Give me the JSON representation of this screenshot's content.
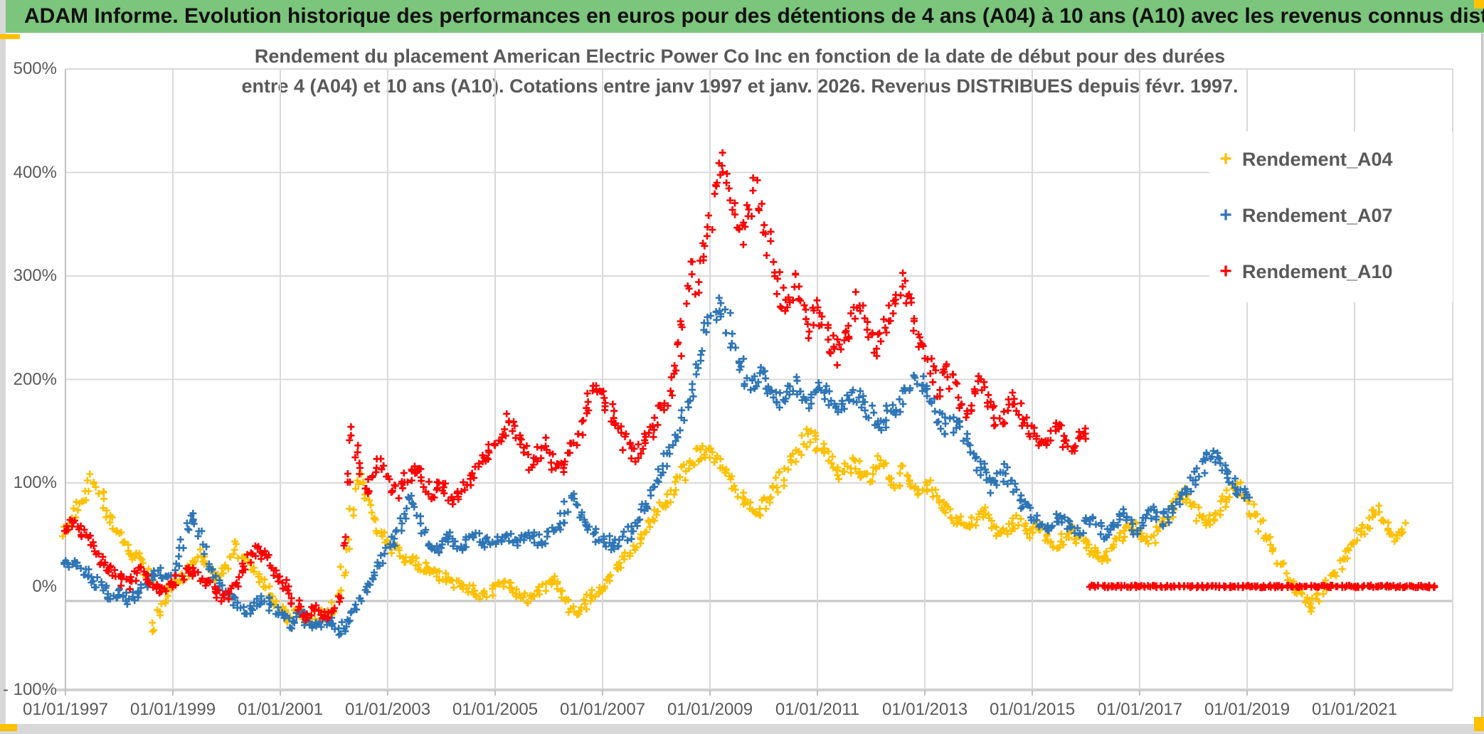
{
  "header": {
    "title": "ADAM Informe. Evolution historique des performances en euros pour des détentions de 4 ans (A04) à 10 ans (A10) avec les revenus connus distribués",
    "background_color": "#7cc57c"
  },
  "accents": {
    "color": "#ffc000"
  },
  "chart": {
    "title_line1": "Rendement du placement American Electric Power Co Inc en fonction de la date de début pour des durées",
    "title_line2": "entre 4 (A04) et 10 ans (A10). Cotations entre janv 1997 et janv. 2026. Revenus DISTRIBUES depuis févr. 1997.",
    "text_color": "#595959",
    "grid_color": "#d9d9d9",
    "axis_line_color": "#bfbfbf",
    "legend": [
      {
        "label": "Rendement_A04",
        "color": "#ffc000"
      },
      {
        "label": "Rendement_A07",
        "color": "#2e75b6"
      },
      {
        "label": "Rendement_A10",
        "color": "#ff0000"
      }
    ],
    "y_tick_labels": [
      "500%",
      "400%",
      "300%",
      "200%",
      "100%",
      "0%",
      "- 100%"
    ],
    "x_tick_prefix": "01/01/"
  },
  "chart_data": {
    "type": "scatter",
    "title": "Rendement du placement American Electric Power Co Inc en fonction de la date de début pour des durées entre 4 (A04) et 10 ans (A10). Cotations entre janv 1997 et janv. 2026. Revenus DISTRIBUES depuis févr. 1997.",
    "xlabel": "",
    "ylabel": "",
    "marker": "plus",
    "grid": true,
    "legend_position": "right",
    "y_axis": {
      "min": -100,
      "max": 500,
      "step": 100,
      "unit": "%"
    },
    "x_axis": {
      "start_year": 1997,
      "end_year": 2022.83,
      "tick_years": [
        1997,
        1999,
        2001,
        2003,
        2005,
        2007,
        2009,
        2011,
        2013,
        2015,
        2017,
        2019,
        2021
      ],
      "tick_label_format": "01/01/YYYY"
    },
    "series": [
      {
        "name": "Rendement_A04",
        "color": "#ffc000",
        "start_year": 1997,
        "monthly_values": [
          55,
          62,
          70,
          78,
          88,
          97,
          103,
          95,
          85,
          72,
          62,
          55,
          48,
          42,
          36,
          32,
          28,
          22,
          15,
          5,
          -38,
          -25,
          -12,
          -5,
          2,
          6,
          10,
          15,
          20,
          26,
          30,
          24,
          18,
          12,
          8,
          14,
          20,
          28,
          38,
          32,
          26,
          20,
          14,
          8,
          2,
          -5,
          -12,
          -18,
          -22,
          -26,
          -30,
          -27,
          -24,
          -27,
          -30,
          -32,
          -28,
          -25,
          -28,
          -32,
          -20,
          -5,
          15,
          40,
          70,
          95,
          105,
          92,
          78,
          65,
          55,
          48,
          42,
          38,
          34,
          30,
          27,
          24,
          22,
          20,
          18,
          16,
          14,
          12,
          10,
          8,
          6,
          4,
          2,
          0,
          -2,
          -4,
          -6,
          -7,
          -6,
          -4,
          -2,
          0,
          2,
          0,
          -3,
          -6,
          -9,
          -12,
          -10,
          -8,
          -5,
          -2,
          2,
          5,
          0,
          -6,
          -14,
          -22,
          -26,
          -22,
          -17,
          -12,
          -8,
          -4,
          0,
          5,
          10,
          16,
          22,
          28,
          34,
          40,
          46,
          52,
          58,
          64,
          70,
          76,
          82,
          88,
          95,
          102,
          110,
          118,
          122,
          126,
          128,
          130,
          131,
          128,
          122,
          115,
          108,
          100,
          92,
          86,
          80,
          76,
          73,
          75,
          80,
          86,
          92,
          98,
          104,
          110,
          118,
          126,
          134,
          140,
          145,
          142,
          138,
          132,
          126,
          120,
          114,
          108,
          112,
          116,
          120,
          114,
          108,
          102,
          108,
          114,
          120,
          113,
          106,
          99,
          104,
          109,
          102,
          96,
          90,
          95,
          100,
          95,
          90,
          85,
          80,
          75,
          70,
          66,
          62,
          58,
          60,
          64,
          68,
          72,
          66,
          60,
          54,
          48,
          52,
          56,
          60,
          64,
          58,
          52,
          56,
          60,
          54,
          48,
          42,
          38,
          42,
          46,
          50,
          54,
          48,
          44,
          40,
          36,
          32,
          28,
          25,
          30,
          36,
          42,
          48,
          54,
          60,
          56,
          52,
          48,
          44,
          48,
          54,
          60,
          66,
          72,
          78,
          84,
          88,
          82,
          76,
          70,
          64,
          58,
          64,
          70,
          76,
          82,
          88,
          92,
          96,
          90,
          82,
          74,
          66,
          58,
          50,
          42,
          34,
          26,
          18,
          10,
          4,
          -2,
          -8,
          -14,
          -20,
          -16,
          -10,
          -4,
          2,
          8,
          15,
          22,
          30,
          38,
          44,
          50,
          56,
          62,
          68,
          74,
          68,
          60,
          54,
          48,
          52,
          56
        ]
      },
      {
        "name": "Rendement_A07",
        "color": "#2e75b6",
        "start_year": 1997,
        "monthly_values": [
          20,
          22,
          24,
          20,
          16,
          12,
          8,
          4,
          0,
          -4,
          -8,
          -6,
          -4,
          -8,
          -12,
          -10,
          -6,
          -2,
          2,
          6,
          10,
          14,
          10,
          6,
          15,
          25,
          40,
          55,
          68,
          60,
          48,
          35,
          22,
          12,
          5,
          0,
          -5,
          -10,
          -15,
          -20,
          -25,
          -22,
          -18,
          -15,
          -12,
          -16,
          -20,
          -25,
          -28,
          -32,
          -36,
          -34,
          -30,
          -28,
          -32,
          -36,
          -40,
          -38,
          -34,
          -30,
          -38,
          -42,
          -40,
          -35,
          -28,
          -20,
          -12,
          -4,
          4,
          12,
          20,
          28,
          35,
          42,
          50,
          60,
          72,
          85,
          75,
          62,
          52,
          45,
          40,
          38,
          42,
          45,
          48,
          45,
          42,
          40,
          43,
          46,
          49,
          46,
          43,
          41,
          44,
          47,
          50,
          47,
          44,
          42,
          45,
          48,
          51,
          48,
          45,
          43,
          48,
          52,
          58,
          66,
          76,
          85,
          78,
          68,
          60,
          54,
          50,
          48,
          45,
          43,
          41,
          40,
          43,
          47,
          52,
          58,
          65,
          73,
          82,
          92,
          102,
          112,
          122,
          132,
          142,
          152,
          162,
          175,
          190,
          205,
          225,
          245,
          258,
          268,
          275,
          268,
          255,
          240,
          225,
          210,
          198,
          192,
          196,
          204,
          200,
          195,
          190,
          185,
          182,
          186,
          192,
          198,
          192,
          186,
          180,
          184,
          188,
          192,
          186,
          180,
          174,
          170,
          176,
          182,
          188,
          182,
          176,
          172,
          168,
          162,
          156,
          160,
          166,
          172,
          178,
          184,
          190,
          196,
          202,
          196,
          195,
          185,
          175,
          165,
          158,
          150,
          155,
          160,
          152,
          144,
          136,
          128,
          120,
          112,
          104,
          96,
          102,
          108,
          114,
          106,
          98,
          90,
          82,
          74,
          68,
          64,
          60,
          56,
          60,
          64,
          68,
          64,
          60,
          56,
          52,
          56,
          60,
          64,
          60,
          56,
          52,
          56,
          60,
          64,
          68,
          64,
          60,
          56,
          60,
          64,
          68,
          72,
          68,
          64,
          68,
          74,
          80,
          86,
          92,
          98,
          104,
          110,
          116,
          122,
          128,
          124,
          118,
          112,
          106,
          100,
          94,
          88,
          85
        ]
      },
      {
        "name": "Rendement_A10",
        "color": "#ff0000",
        "start_year": 1997,
        "monthly_values": [
          56,
          60,
          63,
          58,
          52,
          45,
          38,
          32,
          26,
          20,
          15,
          11,
          8,
          5,
          2,
          6,
          10,
          14,
          10,
          6,
          2,
          -2,
          -6,
          -2,
          2,
          6,
          10,
          14,
          17,
          13,
          9,
          5,
          1,
          -3,
          -7,
          -11,
          -7,
          -2,
          4,
          12,
          20,
          28,
          34,
          38,
          32,
          26,
          20,
          14,
          8,
          2,
          -5,
          -12,
          -18,
          -24,
          -28,
          -25,
          -22,
          -26,
          -30,
          -27,
          -24,
          -12,
          45,
          105,
          150,
          132,
          112,
          92,
          98,
          108,
          118,
          112,
          105,
          98,
          92,
          96,
          102,
          108,
          114,
          108,
          102,
          96,
          90,
          95,
          100,
          94,
          88,
          85,
          90,
          96,
          102,
          108,
          114,
          120,
          126,
          132,
          138,
          146,
          154,
          160,
          152,
          144,
          136,
          128,
          120,
          124,
          130,
          136,
          128,
          120,
          114,
          118,
          124,
          132,
          142,
          154,
          166,
          178,
          190,
          196,
          188,
          178,
          168,
          158,
          148,
          140,
          132,
          126,
          130,
          136,
          142,
          150,
          158,
          168,
          180,
          194,
          210,
          230,
          255,
          280,
          305,
          290,
          310,
          330,
          355,
          380,
          405,
          408,
          390,
          370,
          350,
          340,
          355,
          370,
          385,
          375,
          350,
          330,
          310,
          295,
          280,
          270,
          282,
          295,
          280,
          265,
          250,
          260,
          272,
          260,
          248,
          236,
          224,
          230,
          240,
          250,
          262,
          274,
          262,
          250,
          238,
          226,
          238,
          250,
          262,
          274,
          286,
          295,
          282,
          268,
          254,
          240,
          228,
          216,
          204,
          192,
          200,
          208,
          198,
          188,
          178,
          168,
          178,
          188,
          196,
          188,
          180,
          172,
          164,
          156,
          164,
          172,
          180,
          172,
          164,
          156,
          148,
          142,
          136,
          142,
          148,
          154,
          148,
          142,
          136,
          130,
          136,
          142,
          145
        ],
        "flat_zero_segment": {
          "start": 2016.083,
          "end": 2022.5,
          "value": 0
        }
      }
    ]
  }
}
